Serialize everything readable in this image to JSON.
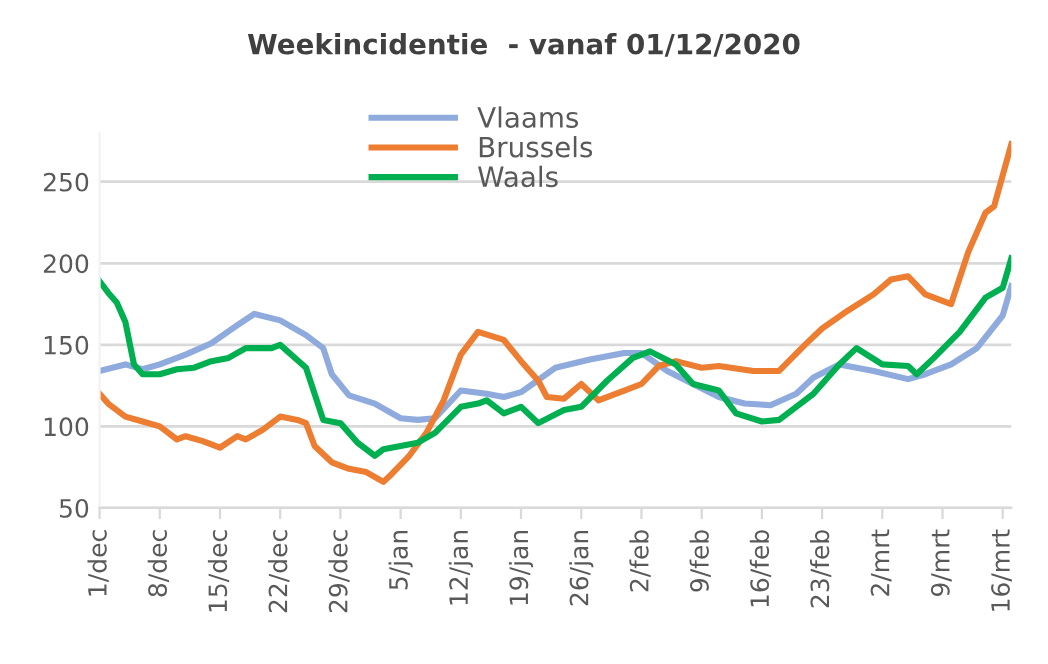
{
  "chart_data": {
    "type": "line",
    "title": "Weekincidentie  - vanaf 01/12/2020",
    "series": [
      {
        "name": "Vlaams",
        "color": "#8faadc",
        "x": [
          "2020-12-01",
          "2020-12-04",
          "2020-12-06",
          "2020-12-08",
          "2020-12-11",
          "2020-12-14",
          "2020-12-17",
          "2020-12-19",
          "2020-12-22",
          "2020-12-25",
          "2020-12-27",
          "2020-12-28",
          "2020-12-30",
          "2021-01-02",
          "2021-01-05",
          "2021-01-07",
          "2021-01-09",
          "2021-01-12",
          "2021-01-15",
          "2021-01-17",
          "2021-01-19",
          "2021-01-23",
          "2021-01-27",
          "2021-01-31",
          "2021-02-02",
          "2021-02-05",
          "2021-02-08",
          "2021-02-11",
          "2021-02-14",
          "2021-02-17",
          "2021-02-20",
          "2021-02-22",
          "2021-02-25",
          "2021-03-01",
          "2021-03-05",
          "2021-03-07",
          "2021-03-10",
          "2021-03-13",
          "2021-03-16",
          "2021-03-17"
        ],
        "values": [
          134,
          138,
          135,
          138,
          144,
          151,
          162,
          169,
          165,
          156,
          148,
          132,
          119,
          114,
          105,
          104,
          105,
          122,
          120,
          118,
          121,
          136,
          141,
          145,
          145,
          134,
          126,
          118,
          114,
          113,
          120,
          130,
          138,
          134,
          129,
          132,
          138,
          148,
          168,
          186
        ]
      },
      {
        "name": "Brussels",
        "color": "#ed7d31",
        "x": [
          "2020-12-01",
          "2020-12-02",
          "2020-12-04",
          "2020-12-06",
          "2020-12-08",
          "2020-12-10",
          "2020-12-11",
          "2020-12-13",
          "2020-12-15",
          "2020-12-17",
          "2020-12-18",
          "2020-12-20",
          "2020-12-22",
          "2020-12-24",
          "2020-12-25",
          "2020-12-26",
          "2020-12-28",
          "2020-12-30",
          "2021-01-01",
          "2021-01-03",
          "2021-01-04",
          "2021-01-06",
          "2021-01-08",
          "2021-01-10",
          "2021-01-12",
          "2021-01-14",
          "2021-01-17",
          "2021-01-19",
          "2021-01-21",
          "2021-01-22",
          "2021-01-24",
          "2021-01-26",
          "2021-01-28",
          "2021-01-31",
          "2021-02-02",
          "2021-02-04",
          "2021-02-06",
          "2021-02-09",
          "2021-02-11",
          "2021-02-15",
          "2021-02-18",
          "2021-02-21",
          "2021-02-23",
          "2021-02-26",
          "2021-03-01",
          "2021-03-03",
          "2021-03-05",
          "2021-03-07",
          "2021-03-10",
          "2021-03-12",
          "2021-03-14",
          "2021-03-15",
          "2021-03-17"
        ],
        "values": [
          120,
          114,
          106,
          103,
          100,
          92,
          94,
          91,
          87,
          94,
          92,
          98,
          106,
          104,
          102,
          88,
          78,
          74,
          72,
          66,
          71,
          82,
          96,
          116,
          144,
          158,
          153,
          140,
          128,
          118,
          117,
          126,
          116,
          122,
          126,
          137,
          140,
          136,
          137,
          134,
          134,
          150,
          160,
          171,
          181,
          190,
          192,
          181,
          175,
          207,
          231,
          235,
          273
        ]
      },
      {
        "name": "Waals",
        "color": "#00b050",
        "x": [
          "2020-12-01",
          "2020-12-02",
          "2020-12-03",
          "2020-12-04",
          "2020-12-05",
          "2020-12-06",
          "2020-12-08",
          "2020-12-10",
          "2020-12-12",
          "2020-12-14",
          "2020-12-16",
          "2020-12-18",
          "2020-12-21",
          "2020-12-22",
          "2020-12-25",
          "2020-12-27",
          "2020-12-29",
          "2020-12-31",
          "2021-01-02",
          "2021-01-03",
          "2021-01-05",
          "2021-01-07",
          "2021-01-09",
          "2021-01-12",
          "2021-01-14",
          "2021-01-15",
          "2021-01-17",
          "2021-01-19",
          "2021-01-21",
          "2021-01-24",
          "2021-01-26",
          "2021-01-29",
          "2021-02-01",
          "2021-02-03",
          "2021-02-06",
          "2021-02-08",
          "2021-02-11",
          "2021-02-13",
          "2021-02-16",
          "2021-02-18",
          "2021-02-22",
          "2021-02-25",
          "2021-02-27",
          "2021-03-02",
          "2021-03-05",
          "2021-03-06",
          "2021-03-08",
          "2021-03-11",
          "2021-03-14",
          "2021-03-16",
          "2021-03-17"
        ],
        "values": [
          189,
          182,
          176,
          164,
          138,
          132,
          132,
          135,
          136,
          140,
          142,
          148,
          148,
          150,
          136,
          104,
          102,
          90,
          82,
          86,
          88,
          90,
          96,
          112,
          114,
          116,
          108,
          112,
          102,
          110,
          112,
          128,
          142,
          146,
          138,
          126,
          122,
          108,
          103,
          104,
          120,
          138,
          148,
          138,
          137,
          132,
          142,
          158,
          179,
          185,
          203
        ]
      }
    ],
    "xlim": [
      "2020-12-01",
      "2021-03-17"
    ],
    "xticks": [
      {
        "value": "2020-12-01",
        "label": "1/dec"
      },
      {
        "value": "2020-12-08",
        "label": "8/dec"
      },
      {
        "value": "2020-12-15",
        "label": "15/dec"
      },
      {
        "value": "2020-12-22",
        "label": "22/dec"
      },
      {
        "value": "2020-12-29",
        "label": "29/dec"
      },
      {
        "value": "2021-01-05",
        "label": "5/jan"
      },
      {
        "value": "2021-01-12",
        "label": "12/jan"
      },
      {
        "value": "2021-01-19",
        "label": "19/jan"
      },
      {
        "value": "2021-01-26",
        "label": "26/jan"
      },
      {
        "value": "2021-02-02",
        "label": "2/feb"
      },
      {
        "value": "2021-02-09",
        "label": "9/feb"
      },
      {
        "value": "2021-02-16",
        "label": "16/feb"
      },
      {
        "value": "2021-02-23",
        "label": "23/feb"
      },
      {
        "value": "2021-03-02",
        "label": "2/mrt"
      },
      {
        "value": "2021-03-09",
        "label": "9/mrt"
      },
      {
        "value": "2021-03-16",
        "label": "16/mrt"
      }
    ],
    "ylim": [
      50,
      280
    ],
    "yticks": [
      50,
      100,
      150,
      200,
      250
    ],
    "grid": "y",
    "legend": "top",
    "marker": "none",
    "line_style": "solid"
  }
}
